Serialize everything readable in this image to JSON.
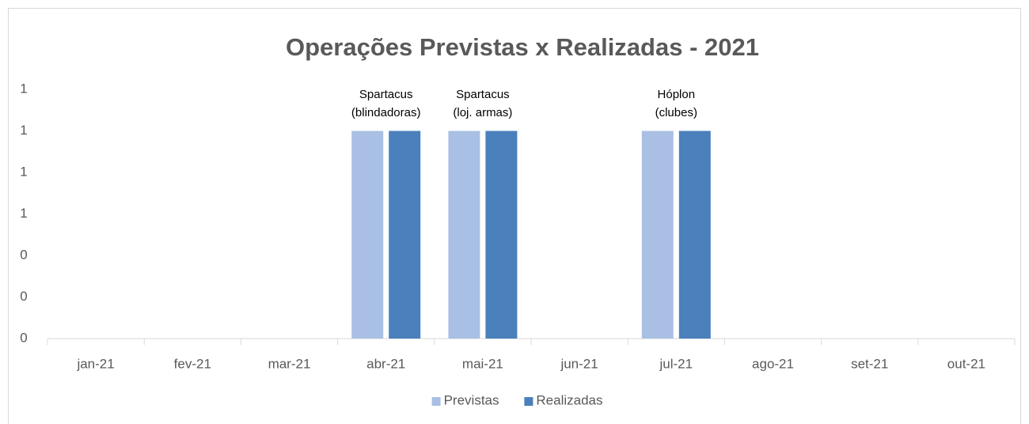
{
  "chart_data": {
    "type": "bar",
    "title": "Operações Previstas x Realizadas - 2021",
    "categories": [
      "jan-21",
      "fev-21",
      "mar-21",
      "abr-21",
      "mai-21",
      "jun-21",
      "jul-21",
      "ago-21",
      "set-21",
      "out-21"
    ],
    "series": [
      {
        "name": "Previstas",
        "color": "#a9c0e4",
        "values": [
          0,
          0,
          0,
          1,
          1,
          0,
          1,
          0,
          0,
          0
        ]
      },
      {
        "name": "Realizadas",
        "color": "#4a80bb",
        "values": [
          0,
          0,
          0,
          1,
          1,
          0,
          1,
          0,
          0,
          0
        ]
      }
    ],
    "ylim": [
      0,
      1.2
    ],
    "yticks": [
      0,
      {
        "value": 0.2,
        "label": "0"
      },
      {
        "value": 0.4,
        "label": "0"
      },
      {
        "value": 0.6,
        "label": "1"
      },
      {
        "value": 0.8,
        "label": "1"
      },
      1,
      {
        "value": 1.2,
        "label": "1"
      }
    ],
    "grid": false,
    "legend": "bottom",
    "annotations": [
      {
        "x": "abr-21",
        "lines": [
          "Spartacus",
          "(blindadoras)"
        ]
      },
      {
        "x": "mai-21",
        "lines": [
          "Spartacus",
          "(loj. armas)"
        ]
      },
      {
        "x": "jul-21",
        "lines": [
          "Hóplon",
          "(clubes)"
        ]
      }
    ]
  }
}
